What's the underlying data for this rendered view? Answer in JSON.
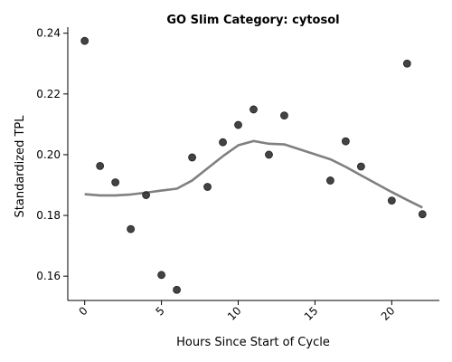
{
  "chart_data": {
    "type": "scatter",
    "title": "GO Slim Category: cytosol",
    "xlabel": "Hours Since Start of Cycle",
    "ylabel": "Standardized TPL",
    "xlim": [
      -1.1,
      23.1
    ],
    "ylim": [
      0.152,
      0.242
    ],
    "xticks": [
      0,
      5,
      10,
      15,
      20
    ],
    "xtick_labels": [
      "0",
      "5",
      "10",
      "15",
      "20"
    ],
    "yticks": [
      0.16,
      0.18,
      0.2,
      0.22,
      0.24
    ],
    "ytick_labels": [
      "0.16",
      "0.18",
      "0.20",
      "0.22",
      "0.24"
    ],
    "grid": false,
    "points": {
      "x": [
        0,
        1,
        2,
        3,
        4,
        5,
        6,
        7,
        8,
        9,
        10,
        11,
        12,
        13,
        16,
        17,
        18,
        20,
        21,
        22
      ],
      "y": [
        0.2375,
        0.1963,
        0.1909,
        0.1755,
        0.1867,
        0.1604,
        0.1555,
        0.1991,
        0.1894,
        0.2041,
        0.2098,
        0.2149,
        0.2,
        0.2129,
        0.1915,
        0.2044,
        0.1961,
        0.1849,
        0.23,
        0.1804
      ]
    },
    "trend": {
      "x": [
        0,
        1,
        2,
        3,
        4,
        5,
        6,
        7,
        8,
        9,
        10,
        11,
        12,
        13,
        16,
        17,
        18,
        20,
        21,
        22
      ],
      "y": [
        0.187,
        0.1866,
        0.1866,
        0.1869,
        0.1875,
        0.1882,
        0.1888,
        0.1915,
        0.1955,
        0.1995,
        0.2031,
        0.2045,
        0.2036,
        0.2034,
        0.1985,
        0.196,
        0.1932,
        0.1877,
        0.1851,
        0.1826
      ]
    }
  }
}
